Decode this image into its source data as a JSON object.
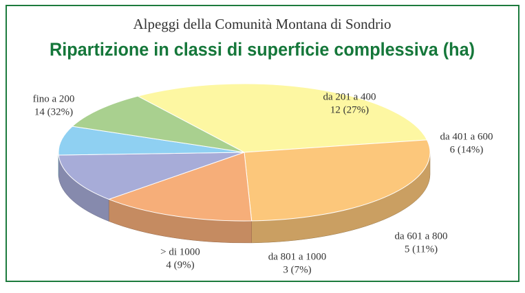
{
  "chart_data": {
    "type": "pie",
    "title": "Alpeggi della Comunità Montana di Sondrio",
    "subtitle": "Ripartizione in classi di superficie complessiva (ha)",
    "categories": [
      "fino a 200",
      "da 201 a 400",
      "da 401 a 600",
      "da 601 a 800",
      "da 801 a 1000",
      "> di 1000"
    ],
    "values": [
      14,
      12,
      6,
      5,
      3,
      4
    ],
    "value_labels": [
      "14 (32%)",
      "12 (27%)",
      "6 (14%)",
      "5 (11%)",
      "3 (7%)",
      "4 (9%)"
    ],
    "colors": [
      "#fdf7a2",
      "#fcc77b",
      "#f6ae79",
      "#a7acd8",
      "#8fd0f2",
      "#a9d08f"
    ]
  }
}
